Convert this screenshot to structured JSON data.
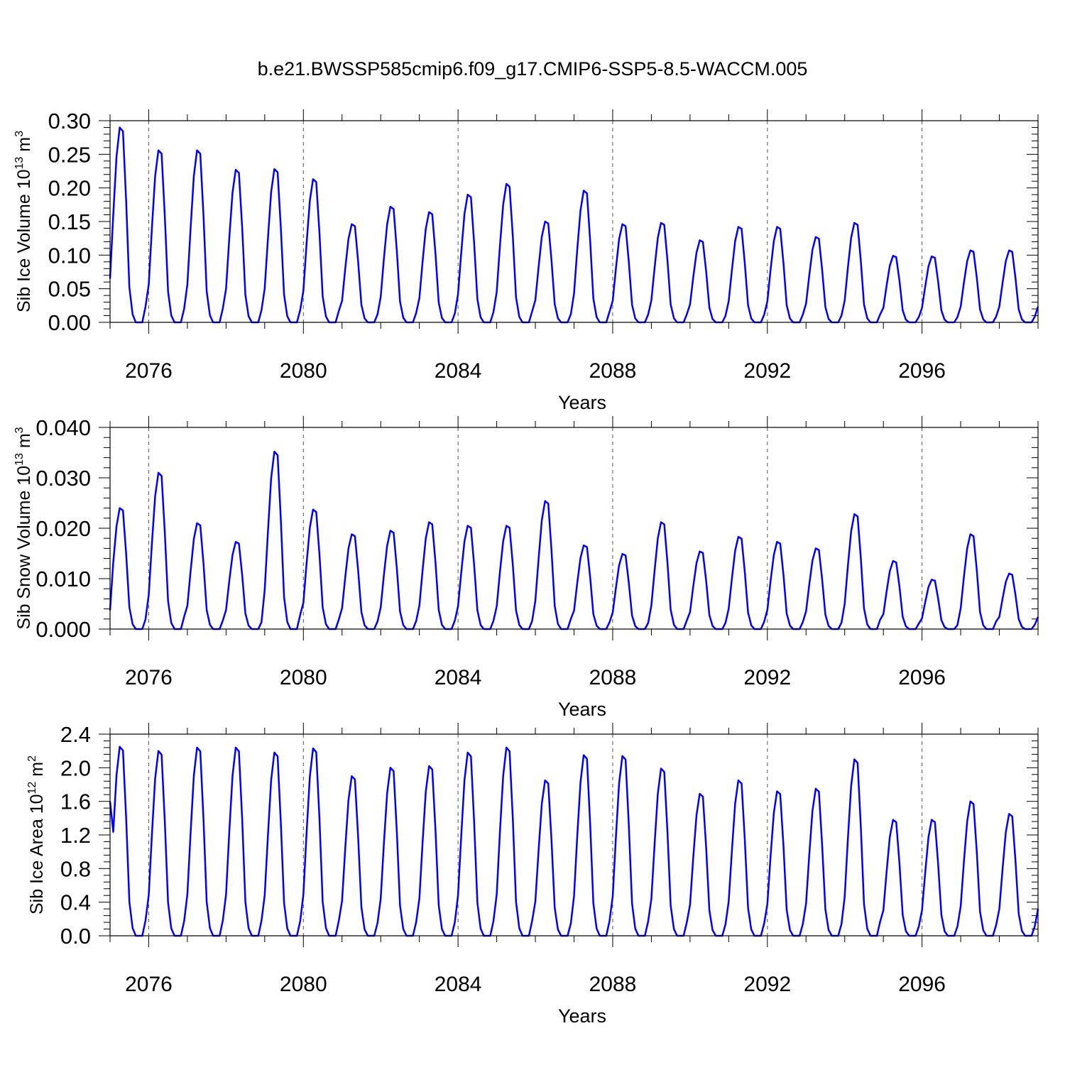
{
  "title": "b.e21.BWSSP585cmip6.f09_g17.CMIP6-SSP5-8.5-WACCM.005",
  "chart_data": [
    {
      "type": "line",
      "ylabel": "Sib Ice Volume 10",
      "ylabel_exp": "13",
      "ylabel_unit": "m",
      "ylabel_unit_exp": "3",
      "xlabel": "Years",
      "ylim": [
        0,
        0.3
      ],
      "yticks": [
        "0.00",
        "0.05",
        "0.10",
        "0.15",
        "0.20",
        "0.25",
        "0.30"
      ],
      "yticks_values": [
        0,
        0.05,
        0.1,
        0.15,
        0.2,
        0.25,
        0.3
      ],
      "xlim": [
        2075,
        2099
      ],
      "xticks": [
        "2076",
        "2080",
        "2084",
        "2088",
        "2092",
        "2096"
      ],
      "line_color": "#0000ff",
      "grid": "dashed vertical lines at labeled years",
      "peaks": [
        0.29,
        0.256,
        0.256,
        0.227,
        0.228,
        0.213,
        0.146,
        0.172,
        0.164,
        0.19,
        0.206,
        0.15,
        0.196,
        0.146,
        0.148,
        0.122,
        0.142,
        0.142,
        0.127,
        0.148,
        0.099,
        0.098,
        0.107,
        0.107
      ],
      "troughs": 0.0,
      "start_value": 0.065
    },
    {
      "type": "line",
      "ylabel": "Sib Snow Volume 10",
      "ylabel_exp": "13",
      "ylabel_unit": "m",
      "ylabel_unit_exp": "3",
      "xlabel": "Years",
      "ylim": [
        0,
        0.04
      ],
      "yticks": [
        "0.000",
        "0.010",
        "0.020",
        "0.030",
        "0.040"
      ],
      "yticks_values": [
        0,
        0.01,
        0.02,
        0.03,
        0.04
      ],
      "xlim": [
        2075,
        2099
      ],
      "xticks": [
        "2076",
        "2080",
        "2084",
        "2088",
        "2092",
        "2096"
      ],
      "line_color": "#0000ff",
      "grid": "dashed vertical lines at labeled years",
      "peaks": [
        0.024,
        0.031,
        0.021,
        0.0173,
        0.0352,
        0.0237,
        0.0188,
        0.0195,
        0.0212,
        0.0205,
        0.0205,
        0.0254,
        0.0166,
        0.0149,
        0.0212,
        0.0154,
        0.0183,
        0.0173,
        0.016,
        0.0228,
        0.0135,
        0.0098,
        0.0188,
        0.011
      ],
      "troughs": 0.0,
      "start_value": 0.0037
    },
    {
      "type": "line",
      "ylabel": "Sib Ice Area 10",
      "ylabel_exp": "12",
      "ylabel_unit": "m",
      "ylabel_unit_exp": "2",
      "xlabel": "Years",
      "ylim": [
        0,
        2.4
      ],
      "yticks": [
        "0.0",
        "0.4",
        "0.8",
        "1.2",
        "1.6",
        "2.0",
        "2.4"
      ],
      "yticks_values": [
        0,
        0.4,
        0.8,
        1.2,
        1.6,
        2.0,
        2.4
      ],
      "xlim": [
        2075,
        2099
      ],
      "xticks": [
        "2076",
        "2080",
        "2084",
        "2088",
        "2092",
        "2096"
      ],
      "line_color": "#0000ff",
      "grid": "dashed vertical lines at labeled years",
      "peaks": [
        2.25,
        2.2,
        2.24,
        2.24,
        2.18,
        2.23,
        1.9,
        2.0,
        2.02,
        2.18,
        2.24,
        1.85,
        2.15,
        2.14,
        1.99,
        1.69,
        1.85,
        1.72,
        1.75,
        2.1,
        1.38,
        1.38,
        1.6,
        1.45
      ],
      "troughs": 0.0,
      "start_value": 1.6
    }
  ]
}
